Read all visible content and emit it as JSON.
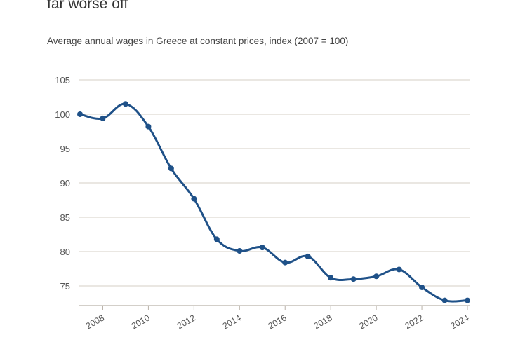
{
  "chart_data": {
    "type": "line",
    "title": "far worse off",
    "subtitle": "Average annual wages in Greece at constant prices, index (2007 = 100)",
    "xlabel": "",
    "ylabel": "",
    "x": [
      2007,
      2008,
      2009,
      2010,
      2011,
      2012,
      2013,
      2014,
      2015,
      2016,
      2017,
      2018,
      2019,
      2020,
      2021,
      2022,
      2023,
      2024
    ],
    "series": [
      {
        "name": "Average annual wages index",
        "color": "#1f5188",
        "values": [
          100,
          99.4,
          101.5,
          98.2,
          92.1,
          87.7,
          81.8,
          80.1,
          80.6,
          78.4,
          79.3,
          76.2,
          76.0,
          76.4,
          77.4,
          74.8,
          72.9,
          72.9
        ]
      }
    ],
    "xlim": [
      2007,
      2024
    ],
    "ylim": [
      72.2,
      105
    ],
    "yticks": [
      "75",
      "80",
      "85",
      "90",
      "95",
      "100",
      "105"
    ],
    "xticks": [
      "2008",
      "2010",
      "2012",
      "2014",
      "2016",
      "2018",
      "2020",
      "2022",
      "2024"
    ],
    "grid": true,
    "legend": "none"
  }
}
